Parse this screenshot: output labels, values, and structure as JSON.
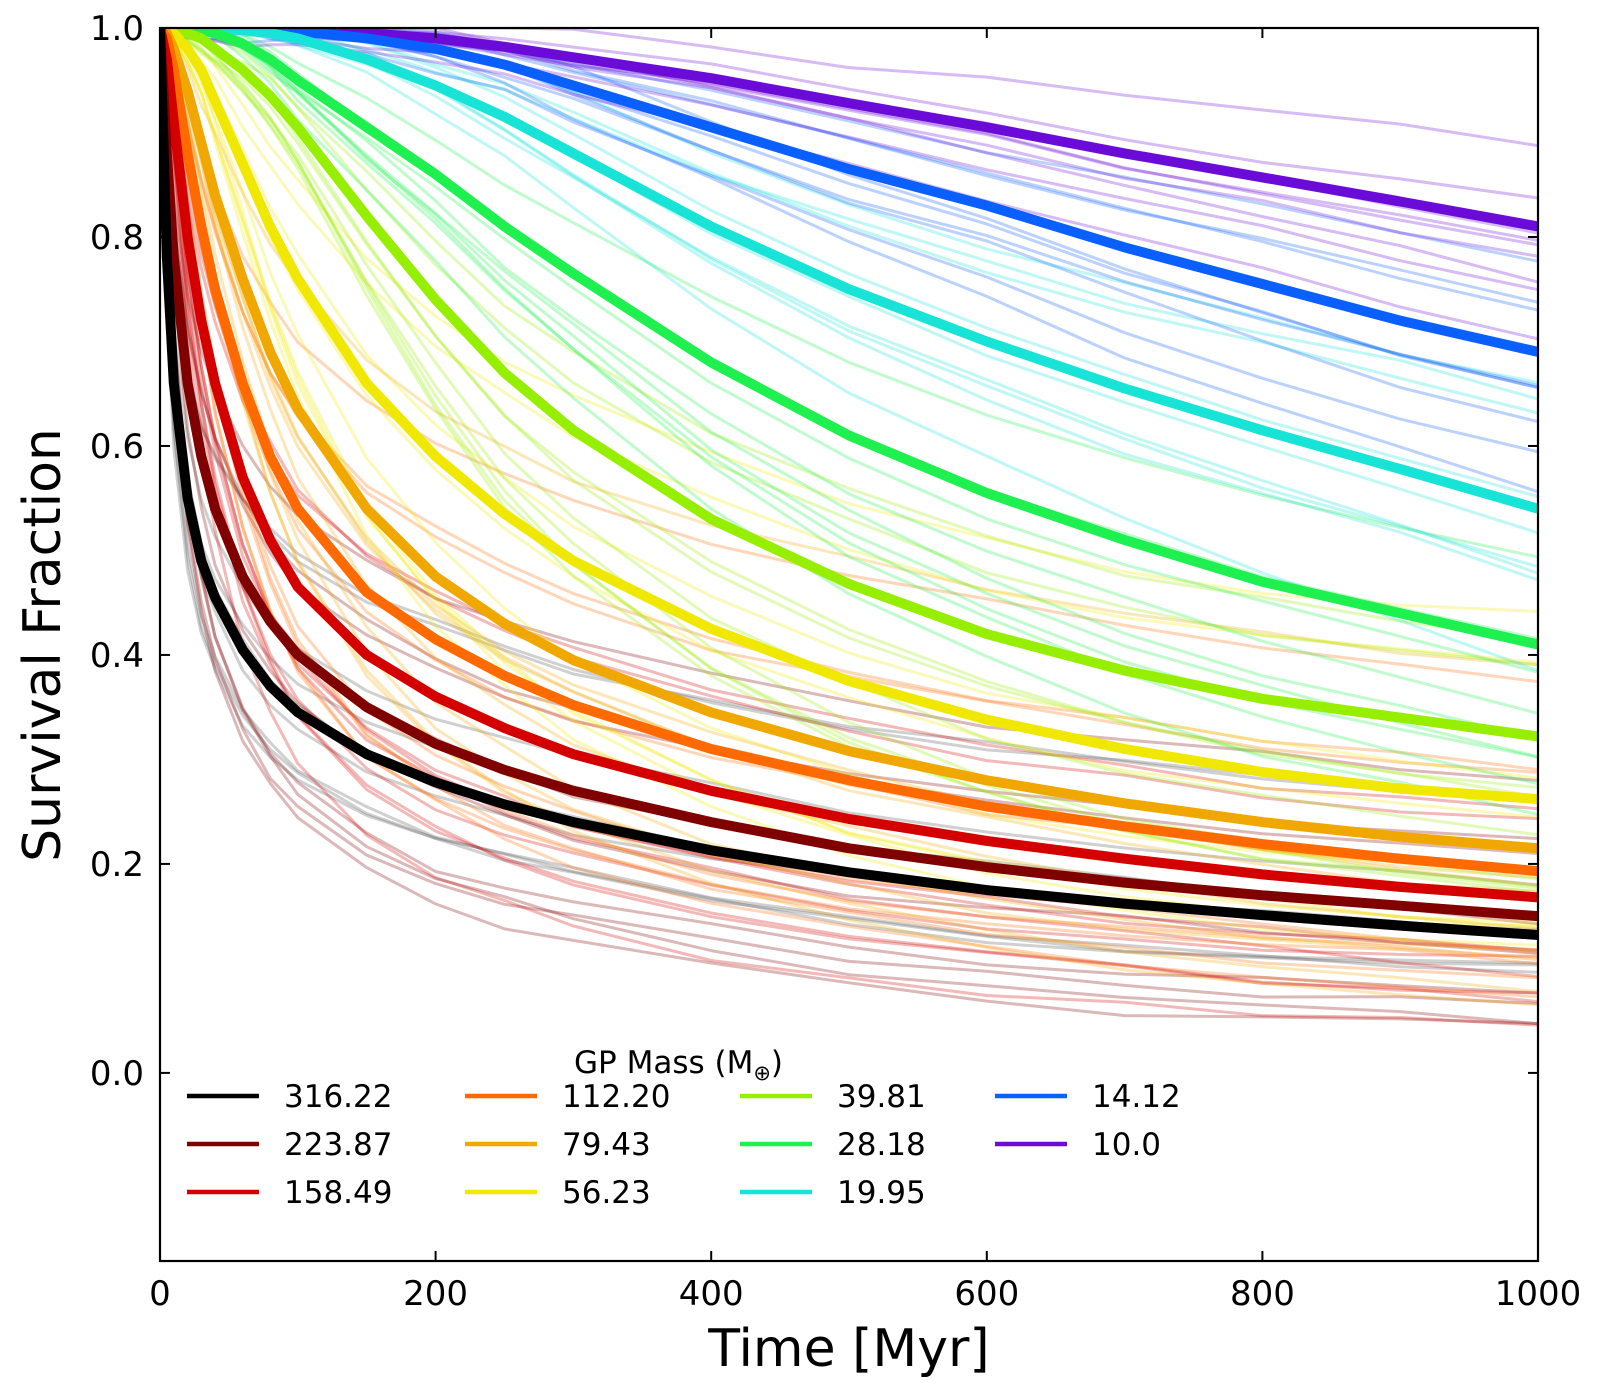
{
  "chart_data": {
    "type": "line",
    "xlabel": "Time [Myr]",
    "ylabel": "Survival Fraction",
    "xlim": [
      0,
      1000
    ],
    "ylim": [
      -0.18,
      1.0
    ],
    "xticks": [
      0,
      200,
      400,
      600,
      800,
      1000
    ],
    "xtick_labels": [
      "0",
      "200",
      "400",
      "600",
      "800",
      "1000"
    ],
    "yticks": [
      0.0,
      0.2,
      0.4,
      0.6,
      0.8,
      1.0
    ],
    "ytick_labels": [
      "0.0",
      "0.2",
      "0.4",
      "0.6",
      "0.8",
      "1.0"
    ],
    "grid": false,
    "legend": {
      "title": "GP Mass (M",
      "title_symbol": "⊕",
      "title_close": ")",
      "placement": "lower-left",
      "columns": 4
    },
    "x": [
      0,
      5,
      10,
      20,
      30,
      40,
      60,
      80,
      100,
      150,
      200,
      250,
      300,
      400,
      500,
      600,
      700,
      800,
      900,
      1000
    ],
    "series": [
      {
        "name": "316.22",
        "color": "#000000",
        "values": [
          1.0,
          0.78,
          0.66,
          0.55,
          0.49,
          0.455,
          0.405,
          0.37,
          0.345,
          0.305,
          0.278,
          0.257,
          0.24,
          0.213,
          0.192,
          0.175,
          0.162,
          0.151,
          0.141,
          0.132
        ]
      },
      {
        "name": "223.87",
        "color": "#800000",
        "values": [
          1.0,
          0.88,
          0.78,
          0.66,
          0.59,
          0.54,
          0.475,
          0.432,
          0.4,
          0.35,
          0.315,
          0.29,
          0.27,
          0.24,
          0.215,
          0.197,
          0.182,
          0.17,
          0.16,
          0.15
        ]
      },
      {
        "name": "158.49",
        "color": "#d40000",
        "values": [
          1.0,
          0.97,
          0.91,
          0.8,
          0.72,
          0.66,
          0.57,
          0.51,
          0.465,
          0.4,
          0.36,
          0.33,
          0.305,
          0.27,
          0.243,
          0.222,
          0.205,
          0.19,
          0.178,
          0.168
        ]
      },
      {
        "name": "112.20",
        "color": "#ff6a00",
        "values": [
          1.0,
          0.99,
          0.96,
          0.88,
          0.81,
          0.75,
          0.66,
          0.59,
          0.54,
          0.46,
          0.415,
          0.38,
          0.352,
          0.31,
          0.28,
          0.255,
          0.236,
          0.219,
          0.205,
          0.193
        ]
      },
      {
        "name": "79.43",
        "color": "#f0a800",
        "values": [
          1.0,
          0.995,
          0.98,
          0.94,
          0.89,
          0.84,
          0.76,
          0.69,
          0.635,
          0.54,
          0.475,
          0.43,
          0.395,
          0.345,
          0.308,
          0.28,
          0.258,
          0.24,
          0.226,
          0.215
        ]
      },
      {
        "name": "56.23",
        "color": "#f0e800",
        "values": [
          1.0,
          1.0,
          0.995,
          0.98,
          0.96,
          0.93,
          0.87,
          0.81,
          0.76,
          0.66,
          0.59,
          0.535,
          0.49,
          0.425,
          0.375,
          0.338,
          0.31,
          0.288,
          0.272,
          0.262
        ]
      },
      {
        "name": "39.81",
        "color": "#96ee00",
        "values": [
          1.0,
          1.0,
          1.0,
          0.995,
          0.99,
          0.98,
          0.96,
          0.935,
          0.905,
          0.82,
          0.74,
          0.67,
          0.615,
          0.53,
          0.468,
          0.42,
          0.385,
          0.358,
          0.34,
          0.322
        ]
      },
      {
        "name": "28.18",
        "color": "#1ef050",
        "values": [
          1.0,
          1.0,
          1.0,
          1.0,
          0.998,
          0.995,
          0.985,
          0.97,
          0.95,
          0.905,
          0.86,
          0.81,
          0.765,
          0.68,
          0.61,
          0.555,
          0.51,
          0.47,
          0.44,
          0.41
        ]
      },
      {
        "name": "19.95",
        "color": "#17e3d6",
        "values": [
          1.0,
          1.0,
          1.0,
          1.0,
          1.0,
          1.0,
          0.998,
          0.995,
          0.99,
          0.97,
          0.945,
          0.915,
          0.88,
          0.81,
          0.75,
          0.7,
          0.655,
          0.615,
          0.578,
          0.54
        ]
      },
      {
        "name": "14.12",
        "color": "#0a5fff",
        "values": [
          1.0,
          1.0,
          1.0,
          1.0,
          1.0,
          1.0,
          1.0,
          0.999,
          0.997,
          0.99,
          0.98,
          0.965,
          0.945,
          0.905,
          0.865,
          0.83,
          0.79,
          0.755,
          0.72,
          0.69
        ]
      },
      {
        "name": "10.0",
        "color": "#6a0bd8",
        "values": [
          1.0,
          1.0,
          1.0,
          1.0,
          1.0,
          1.0,
          1.0,
          1.0,
          0.999,
          0.995,
          0.99,
          0.982,
          0.972,
          0.952,
          0.928,
          0.905,
          0.88,
          0.857,
          0.834,
          0.81
        ]
      }
    ]
  }
}
